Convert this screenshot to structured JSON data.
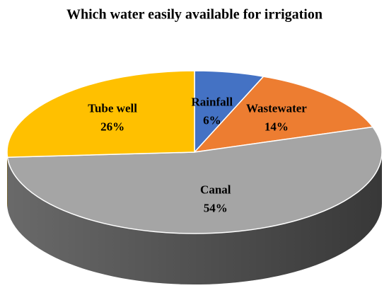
{
  "chart_data": {
    "type": "pie3d",
    "title": "Which water easily available for irrigation",
    "categories": [
      "Rainfall",
      "Wastewater",
      "Canal",
      "Tube well"
    ],
    "values": [
      6,
      14,
      54,
      26
    ],
    "value_labels": [
      "6%",
      "14%",
      "54%",
      "26%"
    ],
    "colors": [
      "#4472c4",
      "#ed7d31",
      "#a5a5a5",
      "#ffc000"
    ]
  }
}
